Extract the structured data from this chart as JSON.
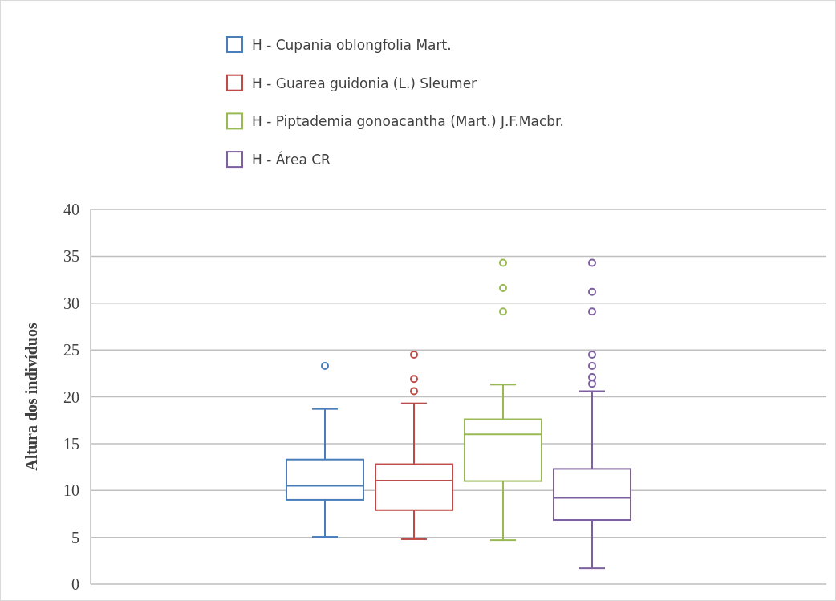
{
  "chart_data": {
    "type": "box",
    "ylabel": "Altura dos indivíduos",
    "categories": [
      null
    ],
    "ylim": [
      0,
      40
    ],
    "yticks": [
      0,
      5,
      10,
      15,
      20,
      25,
      30,
      35,
      40
    ],
    "grid": "y",
    "legend": "top",
    "series": [
      {
        "name": "H - Cupania oblongfolia Mart.",
        "color": "#4a7ebb",
        "boxes": [
          {
            "low": 5.05,
            "q1": 9,
            "median": 10.5,
            "q3": 13.3,
            "high": 18.7,
            "outliers": [
              23.3
            ]
          }
        ]
      },
      {
        "name": "H - Guarea guidonia (L.) Sleumer",
        "color": "#be4b48",
        "boxes": [
          {
            "low": 4.8,
            "q1": 7.9,
            "median": 11.05,
            "q3": 12.8,
            "high": 19.3,
            "outliers": [
              20.6,
              21.9,
              24.5
            ]
          }
        ]
      },
      {
        "name": "H - Piptademia gonoacantha (Mart.) J.F.Macbr.",
        "color": "#98b954",
        "boxes": [
          {
            "low": 4.7,
            "q1": 11,
            "median": 16,
            "q3": 17.6,
            "high": 21.3,
            "outliers": [
              29.1,
              31.6,
              34.3
            ]
          }
        ]
      },
      {
        "name": "H - Área CR",
        "color": "#7d60a0",
        "boxes": [
          {
            "low": 1.7,
            "q1": 6.85,
            "median": 9.2,
            "q3": 12.3,
            "high": 20.6,
            "outliers": [
              21.4,
              22.1,
              23.3,
              24.5,
              29.1,
              31.2,
              34.3
            ]
          }
        ]
      }
    ]
  }
}
